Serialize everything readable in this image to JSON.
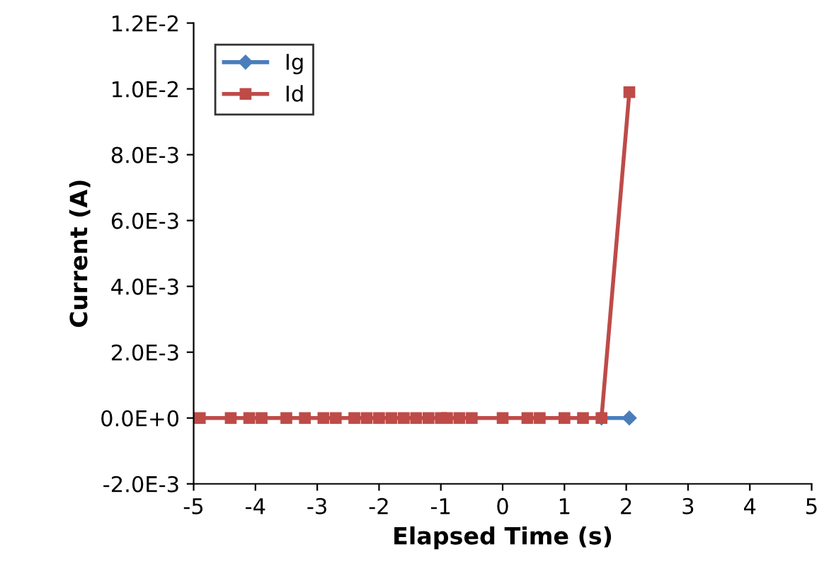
{
  "chart_data": {
    "type": "line",
    "xlabel": "Elapsed Time (s)",
    "ylabel": "Current (A)",
    "xlim": [
      -5,
      5
    ],
    "xticks": [
      -5,
      -4,
      -3,
      -2,
      -1,
      0,
      1,
      2,
      3,
      4,
      5
    ],
    "ylim": [
      -0.002,
      0.012
    ],
    "yticks": [
      {
        "value": -0.002,
        "label": "-2.0E-3"
      },
      {
        "value": 0,
        "label": "0.0E+0"
      },
      {
        "value": 0.002,
        "label": "2.0E-3"
      },
      {
        "value": 0.004,
        "label": "4.0E-3"
      },
      {
        "value": 0.006,
        "label": "6.0E-3"
      },
      {
        "value": 0.008,
        "label": "8.0E-3"
      },
      {
        "value": 0.01,
        "label": "1.0E-2"
      },
      {
        "value": 0.012,
        "label": "1.2E-2"
      }
    ],
    "grid": false,
    "legend": "top left",
    "series": [
      {
        "name": "Ig",
        "color": "#4a7ebb",
        "marker": "diamond",
        "x": [
          1.6,
          2.05
        ],
        "values": [
          0,
          0
        ]
      },
      {
        "name": "Id",
        "color": "#be4b48",
        "marker": "square",
        "x": [
          -4.9,
          -4.4,
          -4.1,
          -3.9,
          -3.5,
          -3.2,
          -2.9,
          -2.7,
          -2.4,
          -2.2,
          -2.0,
          -1.8,
          -1.6,
          -1.4,
          -1.2,
          -1.0,
          -0.9,
          -0.7,
          -0.5,
          0.0,
          0.4,
          0.6,
          1.0,
          1.3,
          1.6,
          2.05
        ],
        "values": [
          0,
          0,
          0,
          0,
          0,
          0,
          0,
          0,
          0,
          0,
          0,
          0,
          0,
          0,
          0,
          0,
          0,
          0,
          0,
          0,
          0,
          0,
          0,
          0,
          0,
          0.0099
        ]
      }
    ]
  }
}
